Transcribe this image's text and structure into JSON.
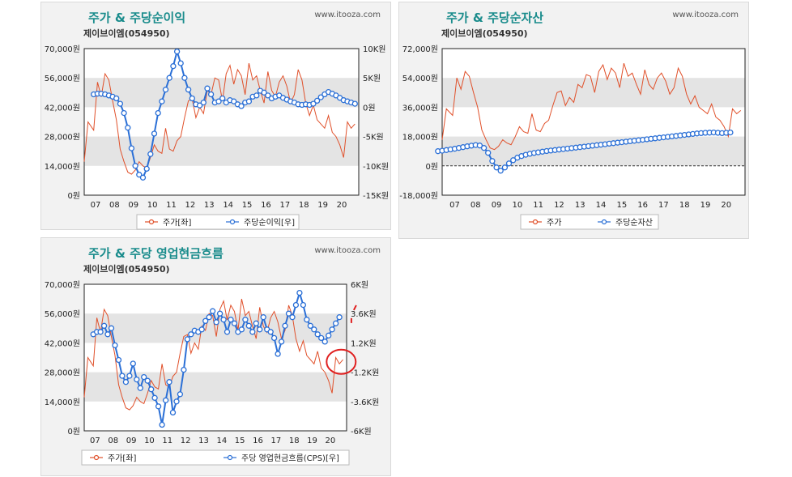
{
  "source": "www.itooza.com",
  "company": "제이브이엠(054950)",
  "colors": {
    "price": "#e0502a",
    "metric": "#2a6fd6",
    "band": "#e4e4e4",
    "plot_bg": "#ffffff",
    "title": "#1a8c8c",
    "annotation": "#e02020"
  },
  "chart_data": [
    {
      "type": "line",
      "title": "주가 & 주당순이익",
      "subtitle": "제이브이엠(054950)",
      "x_categories": [
        "07",
        "08",
        "09",
        "10",
        "11",
        "12",
        "13",
        "14",
        "15",
        "16",
        "17",
        "18",
        "19",
        "20"
      ],
      "ylim_left": [
        0,
        70000
      ],
      "ylim_right": [
        -15,
        10
      ],
      "yticks_left": [
        "70,000원",
        "56,000원",
        "42,000원",
        "28,000원",
        "14,000원",
        "0원"
      ],
      "yticks_right": [
        "10K원",
        "5K원",
        "0원",
        "-5K원",
        "-10K원",
        "-15K원"
      ],
      "grid": "alternating bands",
      "legend_position": "bottom",
      "series": [
        {
          "name": "주가[좌]",
          "axis": "left",
          "marker": "none",
          "x": [
            6.4,
            6.6,
            6.9,
            7.1,
            7.3,
            7.5,
            7.7,
            7.9,
            8.1,
            8.3,
            8.5,
            8.7,
            8.9,
            9.1,
            9.3,
            9.5,
            9.7,
            9.9,
            10.1,
            10.3,
            10.5,
            10.7,
            10.9,
            11.1,
            11.3,
            11.5,
            11.7,
            11.9,
            12.1,
            12.3,
            12.5,
            12.7,
            12.9,
            13.1,
            13.3,
            13.5,
            13.7,
            13.9,
            14.1,
            14.3,
            14.5,
            14.7,
            14.9,
            15.1,
            15.3,
            15.5,
            15.7,
            15.9,
            16.1,
            16.3,
            16.5,
            16.7,
            16.9,
            17.1,
            17.3,
            17.5,
            17.7,
            17.9,
            18.1,
            18.3,
            18.5,
            18.7,
            18.9,
            19.1,
            19.3,
            19.5,
            19.7,
            19.9,
            20.1,
            20.3,
            20.5,
            20.7
          ],
          "y": [
            16000,
            35000,
            31000,
            54000,
            47000,
            58000,
            55000,
            45000,
            36000,
            22000,
            16000,
            11000,
            10000,
            12000,
            16000,
            14000,
            13000,
            18000,
            24000,
            21000,
            20000,
            32000,
            22000,
            21000,
            26000,
            28000,
            37000,
            45000,
            46000,
            37000,
            42000,
            39000,
            50000,
            48000,
            56000,
            55000,
            45000,
            58000,
            62000,
            53000,
            60000,
            57000,
            48000,
            63000,
            55000,
            57000,
            50000,
            44000,
            59000,
            50000,
            47000,
            54000,
            57000,
            52000,
            44000,
            48000,
            60000,
            55000,
            44000,
            38000,
            43000,
            36000,
            34000,
            32000,
            38000,
            30000,
            28000,
            24000,
            18000,
            35000,
            32000,
            34000
          ]
        },
        {
          "name": "주당순이익[우]",
          "axis": "right",
          "marker": "circle",
          "x": [
            6.9,
            7.1,
            7.3,
            7.5,
            7.7,
            7.9,
            8.1,
            8.3,
            8.5,
            8.7,
            8.9,
            9.1,
            9.3,
            9.5,
            9.7,
            9.9,
            10.1,
            10.3,
            10.5,
            10.7,
            10.9,
            11.1,
            11.3,
            11.5,
            11.7,
            11.9,
            12.1,
            12.3,
            12.5,
            12.7,
            12.9,
            13.1,
            13.3,
            13.5,
            13.7,
            13.9,
            14.1,
            14.3,
            14.5,
            14.7,
            14.9,
            15.1,
            15.3,
            15.5,
            15.7,
            15.9,
            16.1,
            16.3,
            16.5,
            16.7,
            16.9,
            17.1,
            17.3,
            17.5,
            17.7,
            17.9,
            18.1,
            18.3,
            18.5,
            18.7,
            18.9,
            19.1,
            19.3,
            19.5,
            19.7,
            19.9,
            20.1,
            20.3,
            20.5,
            20.7
          ],
          "y": [
            2.2,
            2.3,
            2.3,
            2.2,
            2,
            1.8,
            1.5,
            0.6,
            -1,
            -3.5,
            -7,
            -10,
            -11.5,
            -12,
            -10.5,
            -8,
            -4.5,
            -1,
            1,
            3,
            5,
            7,
            9.5,
            7.5,
            5,
            3,
            1.5,
            0.5,
            0.3,
            0.8,
            3.2,
            2.2,
            0.8,
            1,
            1.5,
            0.8,
            1.2,
            1,
            0.5,
            0.2,
            0.8,
            1,
            1.8,
            2,
            2.8,
            2.5,
            2,
            1.5,
            1.8,
            2,
            1.6,
            1.3,
            1,
            0.8,
            0.5,
            0.4,
            0.5,
            0.4,
            0.6,
            1.1,
            1.7,
            2.2,
            2.6,
            2.3,
            2,
            1.6,
            1.2,
            1,
            0.8,
            0.6
          ]
        }
      ]
    },
    {
      "type": "line",
      "title": "주가 & 주당순자산",
      "subtitle": "제이브이엠(054950)",
      "x_categories": [
        "07",
        "08",
        "09",
        "10",
        "11",
        "12",
        "13",
        "14",
        "15",
        "16",
        "17",
        "18",
        "19",
        "20"
      ],
      "ylim_left": [
        -18000,
        72000
      ],
      "yticks_left": [
        "72,000원",
        "54,000원",
        "36,000원",
        "18,000원",
        "0원",
        "-18,000원"
      ],
      "grid": "alternating bands, dashed zero line",
      "legend_position": "bottom",
      "series": [
        {
          "name": "주가",
          "axis": "left",
          "marker": "none",
          "x": [
            6.4,
            6.6,
            6.9,
            7.1,
            7.3,
            7.5,
            7.7,
            7.9,
            8.1,
            8.3,
            8.5,
            8.7,
            8.9,
            9.1,
            9.3,
            9.5,
            9.7,
            9.9,
            10.1,
            10.3,
            10.5,
            10.7,
            10.9,
            11.1,
            11.3,
            11.5,
            11.7,
            11.9,
            12.1,
            12.3,
            12.5,
            12.7,
            12.9,
            13.1,
            13.3,
            13.5,
            13.7,
            13.9,
            14.1,
            14.3,
            14.5,
            14.7,
            14.9,
            15.1,
            15.3,
            15.5,
            15.7,
            15.9,
            16.1,
            16.3,
            16.5,
            16.7,
            16.9,
            17.1,
            17.3,
            17.5,
            17.7,
            17.9,
            18.1,
            18.3,
            18.5,
            18.7,
            18.9,
            19.1,
            19.3,
            19.5,
            19.7,
            19.9,
            20.1,
            20.3,
            20.5,
            20.7
          ],
          "y": [
            16000,
            35000,
            31000,
            54000,
            47000,
            58000,
            55000,
            45000,
            36000,
            22000,
            16000,
            11000,
            10000,
            12000,
            16000,
            14000,
            13000,
            18000,
            24000,
            21000,
            20000,
            32000,
            22000,
            21000,
            26000,
            28000,
            37000,
            45000,
            46000,
            37000,
            42000,
            39000,
            50000,
            48000,
            56000,
            55000,
            45000,
            58000,
            62000,
            53000,
            60000,
            57000,
            48000,
            63000,
            55000,
            57000,
            50000,
            44000,
            59000,
            50000,
            47000,
            54000,
            57000,
            52000,
            44000,
            48000,
            60000,
            55000,
            44000,
            38000,
            43000,
            36000,
            34000,
            32000,
            38000,
            30000,
            28000,
            24000,
            18000,
            35000,
            32000,
            34000
          ]
        },
        {
          "name": "주당순자산",
          "axis": "left",
          "marker": "circle",
          "x": [
            6.2,
            6.4,
            6.6,
            6.8,
            7,
            7.2,
            7.4,
            7.6,
            7.8,
            8,
            8.2,
            8.4,
            8.6,
            8.8,
            9,
            9.2,
            9.4,
            9.6,
            9.8,
            10,
            10.2,
            10.4,
            10.6,
            10.8,
            11,
            11.2,
            11.4,
            11.6,
            11.8,
            12,
            12.2,
            12.4,
            12.6,
            12.8,
            13,
            13.2,
            13.4,
            13.6,
            13.8,
            14,
            14.2,
            14.4,
            14.6,
            14.8,
            15,
            15.2,
            15.4,
            15.6,
            15.8,
            16,
            16.2,
            16.4,
            16.6,
            16.8,
            17,
            17.2,
            17.4,
            17.6,
            17.8,
            18,
            18.2,
            18.4,
            18.6,
            18.8,
            19,
            19.2,
            19.4,
            19.6,
            19.8,
            20,
            20.2
          ],
          "y": [
            9000,
            9300,
            9700,
            10100,
            10500,
            11000,
            11500,
            12000,
            12400,
            12800,
            12500,
            11000,
            8000,
            3000,
            -1000,
            -3000,
            -1000,
            1500,
            3500,
            5000,
            6000,
            6800,
            7400,
            7900,
            8300,
            8700,
            9100,
            9400,
            9700,
            10000,
            10300,
            10600,
            10900,
            11200,
            11500,
            11800,
            12100,
            12400,
            12700,
            13000,
            13300,
            13600,
            13900,
            14200,
            14500,
            14800,
            15100,
            15400,
            15700,
            16000,
            16300,
            16600,
            16900,
            17200,
            17500,
            17800,
            18100,
            18400,
            18700,
            19000,
            19300,
            19600,
            19900,
            20100,
            20300,
            20400,
            20500,
            20300,
            20100,
            20300,
            20500
          ]
        }
      ]
    },
    {
      "type": "line",
      "title": "주가 & 주당 영업현금흐름",
      "subtitle": "제이브이엠(054950)",
      "x_categories": [
        "07",
        "08",
        "09",
        "10",
        "11",
        "12",
        "13",
        "14",
        "15",
        "16",
        "17",
        "18",
        "19",
        "20"
      ],
      "ylim_left": [
        0,
        70000
      ],
      "ylim_right": [
        -6,
        6
      ],
      "yticks_left": [
        "70,000원",
        "56,000원",
        "42,000원",
        "28,000원",
        "14,000원",
        "0원"
      ],
      "yticks_right": [
        "6K원",
        "3.6K원",
        "1.2K원",
        "-1.2K원",
        "-3.6K원",
        "-6K원"
      ],
      "grid": "alternating bands",
      "legend_position": "bottom",
      "series": [
        {
          "name": "주가[좌]",
          "axis": "left",
          "marker": "none",
          "x": [
            6.4,
            6.6,
            6.9,
            7.1,
            7.3,
            7.5,
            7.7,
            7.9,
            8.1,
            8.3,
            8.5,
            8.7,
            8.9,
            9.1,
            9.3,
            9.5,
            9.7,
            9.9,
            10.1,
            10.3,
            10.5,
            10.7,
            10.9,
            11.1,
            11.3,
            11.5,
            11.7,
            11.9,
            12.1,
            12.3,
            12.5,
            12.7,
            12.9,
            13.1,
            13.3,
            13.5,
            13.7,
            13.9,
            14.1,
            14.3,
            14.5,
            14.7,
            14.9,
            15.1,
            15.3,
            15.5,
            15.7,
            15.9,
            16.1,
            16.3,
            16.5,
            16.7,
            16.9,
            17.1,
            17.3,
            17.5,
            17.7,
            17.9,
            18.1,
            18.3,
            18.5,
            18.7,
            18.9,
            19.1,
            19.3,
            19.5,
            19.7,
            19.9,
            20.1,
            20.3,
            20.5,
            20.7
          ],
          "y": [
            16000,
            35000,
            31000,
            54000,
            47000,
            58000,
            55000,
            45000,
            36000,
            22000,
            16000,
            11000,
            10000,
            12000,
            16000,
            14000,
            13000,
            18000,
            24000,
            21000,
            20000,
            32000,
            22000,
            21000,
            26000,
            28000,
            37000,
            45000,
            46000,
            37000,
            42000,
            39000,
            50000,
            48000,
            56000,
            55000,
            45000,
            58000,
            62000,
            53000,
            60000,
            57000,
            48000,
            63000,
            55000,
            57000,
            50000,
            44000,
            59000,
            50000,
            47000,
            54000,
            57000,
            52000,
            44000,
            48000,
            60000,
            55000,
            44000,
            38000,
            43000,
            36000,
            34000,
            32000,
            38000,
            30000,
            28000,
            24000,
            18000,
            35000,
            32000,
            34000
          ]
        },
        {
          "name": "주당 영업현금흐름(CPS)[우]",
          "axis": "right",
          "marker": "circle",
          "x": [
            6.9,
            7.1,
            7.3,
            7.5,
            7.7,
            7.9,
            8.1,
            8.3,
            8.5,
            8.7,
            8.9,
            9.1,
            9.3,
            9.5,
            9.7,
            9.9,
            10.1,
            10.3,
            10.5,
            10.7,
            10.9,
            11.1,
            11.3,
            11.5,
            11.7,
            11.9,
            12.1,
            12.3,
            12.5,
            12.7,
            12.9,
            13.1,
            13.3,
            13.5,
            13.7,
            13.9,
            14.1,
            14.3,
            14.5,
            14.7,
            14.9,
            15.1,
            15.3,
            15.5,
            15.7,
            15.9,
            16.1,
            16.3,
            16.5,
            16.7,
            16.9,
            17.1,
            17.3,
            17.5,
            17.7,
            17.9,
            18.1,
            18.3,
            18.5,
            18.7,
            18.9,
            19.1,
            19.3,
            19.5,
            19.7,
            19.9,
            20.1,
            20.3,
            20.5
          ],
          "y": [
            1.9,
            2.1,
            2.1,
            2.6,
            1.9,
            2.4,
            1.0,
            -0.2,
            -1.5,
            -2.0,
            -1.5,
            -0.5,
            -1.8,
            -2.5,
            -1.6,
            -1.9,
            -2.6,
            -3.3,
            -4.0,
            -5.5,
            -3.5,
            -2.0,
            -4.5,
            -3.6,
            -3.0,
            -1.0,
            1.5,
            1.9,
            2.2,
            2.1,
            2.3,
            3.0,
            3.3,
            3.8,
            2.9,
            3.6,
            3.1,
            2.1,
            3.1,
            2.8,
            2.1,
            2.3,
            3.1,
            2.6,
            2.1,
            2.8,
            2.3,
            3.3,
            2.3,
            2.1,
            1.6,
            0.3,
            1.3,
            2.6,
            3.6,
            3.3,
            4.3,
            5.3,
            4.3,
            3.1,
            2.6,
            2.3,
            1.9,
            1.6,
            1.3,
            1.8,
            2.3,
            2.8,
            3.3
          ]
        }
      ]
    }
  ]
}
